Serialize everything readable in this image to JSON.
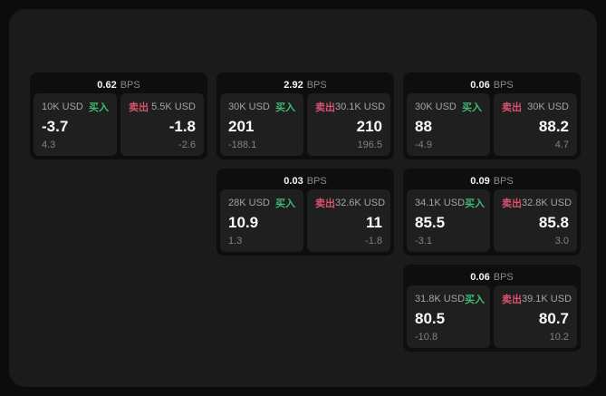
{
  "labels": {
    "buy": "买入",
    "sell": "卖出",
    "bps": "BPS"
  },
  "colors": {
    "buy": "#3dba75",
    "sell": "#d9536f"
  },
  "cards": [
    {
      "bps": "0.62",
      "buy": {
        "amount": "10K USD",
        "value": "-3.7",
        "delta": "4.3"
      },
      "sell": {
        "amount": "5.5K USD",
        "value": "-1.8",
        "delta": "-2.6"
      }
    },
    {
      "bps": "2.92",
      "buy": {
        "amount": "30K USD",
        "value": "201",
        "delta": "-188.1"
      },
      "sell": {
        "amount": "30.1K USD",
        "value": "210",
        "delta": "196.5"
      }
    },
    {
      "bps": "0.06",
      "buy": {
        "amount": "30K USD",
        "value": "88",
        "delta": "-4.9"
      },
      "sell": {
        "amount": "30K USD",
        "value": "88.2",
        "delta": "4.7"
      }
    },
    {
      "bps": "0.03",
      "buy": {
        "amount": "28K USD",
        "value": "10.9",
        "delta": "1.3"
      },
      "sell": {
        "amount": "32.6K USD",
        "value": "11",
        "delta": "-1.8"
      }
    },
    {
      "bps": "0.09",
      "buy": {
        "amount": "34.1K USD",
        "value": "85.5",
        "delta": "-3.1"
      },
      "sell": {
        "amount": "32.8K USD",
        "value": "85.8",
        "delta": "3.0"
      }
    },
    {
      "bps": "0.06",
      "buy": {
        "amount": "31.8K USD",
        "value": "80.5",
        "delta": "-10.8"
      },
      "sell": {
        "amount": "39.1K USD",
        "value": "80.7",
        "delta": "10.2"
      }
    }
  ]
}
